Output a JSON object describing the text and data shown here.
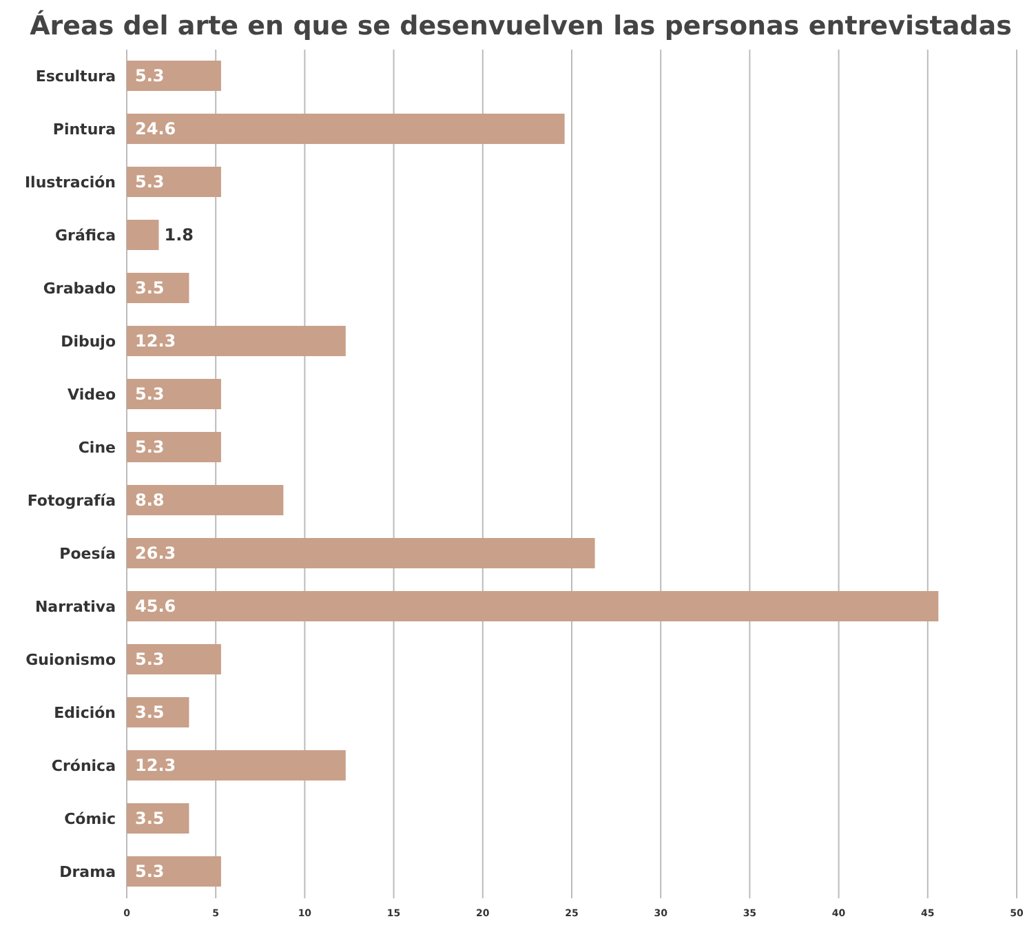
{
  "chart_data": {
    "type": "bar",
    "orientation": "horizontal",
    "title": "Áreas del arte en que se desenvuelven las personas entrevistadas",
    "categories": [
      "Escultura",
      "Pintura",
      "Ilustración",
      "Gráfica",
      "Grabado",
      "Dibujo",
      "Video",
      "Cine",
      "Fotografía",
      "Poesía",
      "Narrativa",
      "Guionismo",
      "Edición",
      "Crónica",
      "Cómic",
      "Drama"
    ],
    "values": [
      5.3,
      24.6,
      5.3,
      1.8,
      3.5,
      12.3,
      5.3,
      5.3,
      8.8,
      26.3,
      45.6,
      5.3,
      3.5,
      12.3,
      3.5,
      5.3
    ],
    "color": "#c9a089",
    "xlim": [
      0,
      50
    ],
    "xticks": [
      0,
      5,
      10,
      15,
      20,
      25,
      30,
      35,
      40,
      45,
      50
    ],
    "grid": "x",
    "data_labels": true
  }
}
